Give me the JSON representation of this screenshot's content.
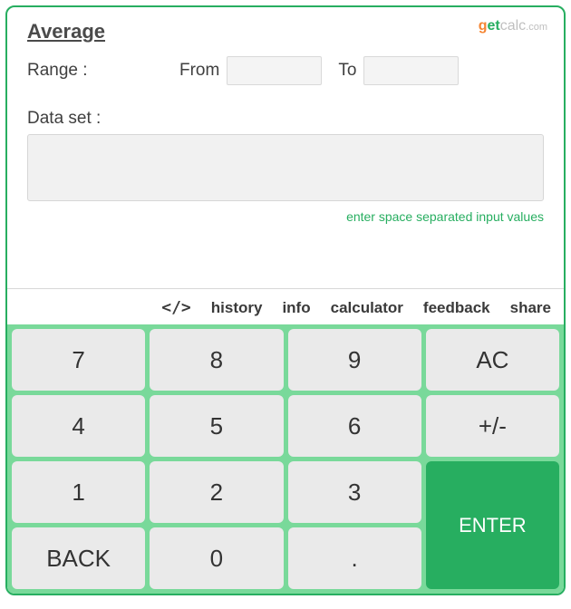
{
  "title": "Average",
  "logo": {
    "g": "g",
    "et": "et",
    "calc": "calc",
    "com": ".com"
  },
  "range": {
    "label": "Range :",
    "fromLabel": "From",
    "toLabel": "To",
    "fromValue": "",
    "toValue": ""
  },
  "dataset": {
    "label": "Data set :",
    "value": "",
    "hint": "enter space separated input values"
  },
  "tabs": {
    "embed": "</>",
    "history": "history",
    "info": "info",
    "calculator": "calculator",
    "feedback": "feedback",
    "share": "share"
  },
  "keys": {
    "k7": "7",
    "k8": "8",
    "k9": "9",
    "ac": "AC",
    "k4": "4",
    "k5": "5",
    "k6": "6",
    "pm": "+/-",
    "k1": "1",
    "k2": "2",
    "k3": "3",
    "back": "BACK",
    "k0": "0",
    "dot": ".",
    "enter": "ENTER"
  },
  "colors": {
    "accent": "#27ae60",
    "padBg": "#79d99a",
    "keyBg": "#eaeaea",
    "text": "#3a3a3a"
  }
}
